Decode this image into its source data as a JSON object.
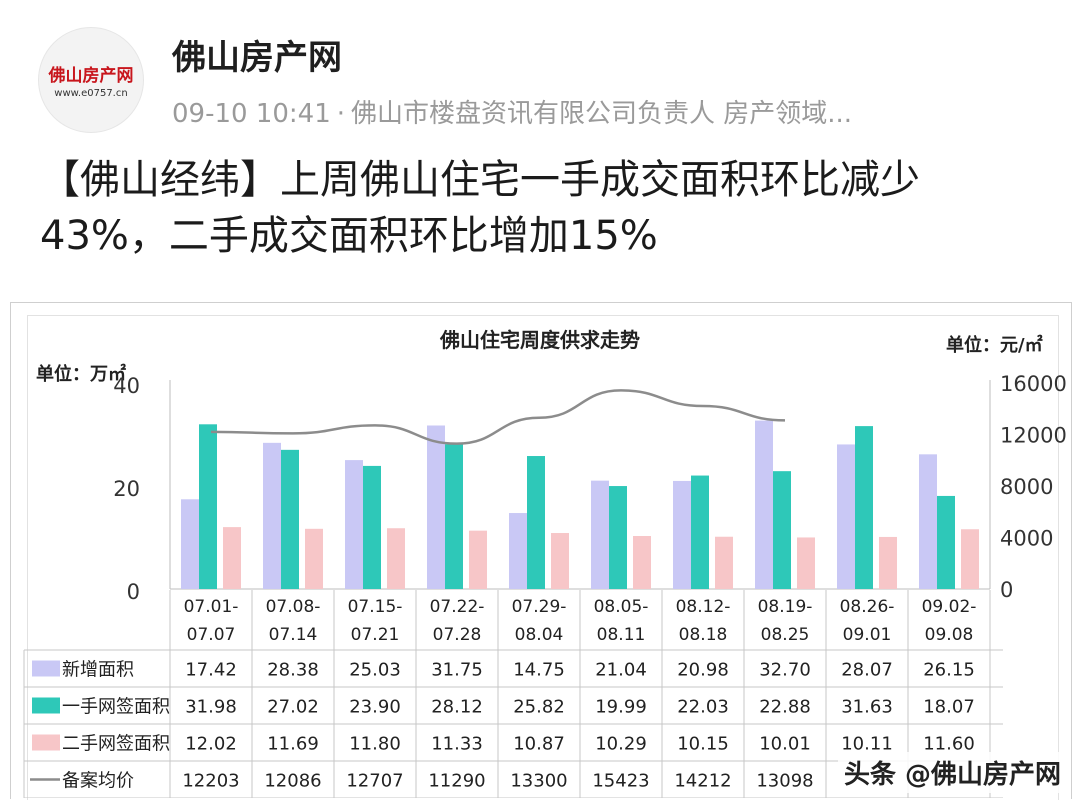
{
  "account": {
    "name": "佛山房产网",
    "logo_text": "佛山房产网",
    "logo_url": "www.e0757.cn",
    "meta_time": "09-10 10:41",
    "meta_separator": "·",
    "meta_desc": "佛山市楼盘资讯有限公司负责人 房产领域..."
  },
  "article": {
    "headline": "【佛山经纬】上周佛山住宅一手成交面积环比减少43%，二手成交面积环比增加15%"
  },
  "watermark": "头条 @佛山房产网",
  "colors": {
    "new_area": "#c9c8f5",
    "first_hand": "#2ec8b8",
    "second_hand": "#f7c6c8",
    "price_line": "#8c8c8c",
    "brand_red": "#c8161d"
  },
  "chart_data": {
    "type": "bar",
    "title": "佛山住宅周度供求走势",
    "ylabel_left": "单位：万㎡",
    "ylabel_right": "单位：元/㎡",
    "ylim_left": [
      0,
      40
    ],
    "yticks_left": [
      0,
      20,
      40
    ],
    "ylim_right": [
      0,
      16000
    ],
    "yticks_right": [
      0,
      4000,
      8000,
      12000,
      16000
    ],
    "grid": false,
    "categories": [
      [
        "07.01-",
        "07.07"
      ],
      [
        "07.08-",
        "07.14"
      ],
      [
        "07.15-",
        "07.21"
      ],
      [
        "07.22-",
        "07.28"
      ],
      [
        "07.29-",
        "08.04"
      ],
      [
        "08.05-",
        "08.11"
      ],
      [
        "08.12-",
        "08.18"
      ],
      [
        "08.19-",
        "08.25"
      ],
      [
        "08.26-",
        "09.01"
      ],
      [
        "09.02-",
        "09.08"
      ]
    ],
    "series": [
      {
        "name": "新增面积",
        "kind": "bar",
        "axis": "left",
        "values": [
          17.42,
          28.38,
          25.03,
          31.75,
          14.75,
          21.04,
          20.98,
          32.7,
          28.07,
          26.15
        ],
        "labels": [
          "17.42",
          "28.38",
          "25.03",
          "31.75",
          "14.75",
          "21.04",
          "20.98",
          "32.70",
          "28.07",
          "26.15"
        ]
      },
      {
        "name": "一手网签面积",
        "kind": "bar",
        "axis": "left",
        "values": [
          31.98,
          27.02,
          23.9,
          28.12,
          25.82,
          19.99,
          22.03,
          22.88,
          31.63,
          18.07
        ],
        "labels": [
          "31.98",
          "27.02",
          "23.90",
          "28.12",
          "25.82",
          "19.99",
          "22.03",
          "22.88",
          "31.63",
          "18.07"
        ]
      },
      {
        "name": "二手网签面积",
        "kind": "bar",
        "axis": "left",
        "values": [
          12.02,
          11.69,
          11.8,
          11.33,
          10.87,
          10.29,
          10.15,
          10.01,
          10.11,
          11.6
        ],
        "labels": [
          "12.02",
          "11.69",
          "11.80",
          "11.33",
          "10.87",
          "10.29",
          "10.15",
          "10.01",
          "10.11",
          "11.60"
        ]
      },
      {
        "name": "备案均价",
        "kind": "line",
        "axis": "right",
        "values": [
          12203,
          12086,
          12707,
          11290,
          13300,
          15423,
          14212,
          13098,
          null,
          null
        ],
        "labels": [
          "12203",
          "12086",
          "12707",
          "11290",
          "13300",
          "15423",
          "14212",
          "13098",
          "",
          ""
        ]
      }
    ]
  }
}
